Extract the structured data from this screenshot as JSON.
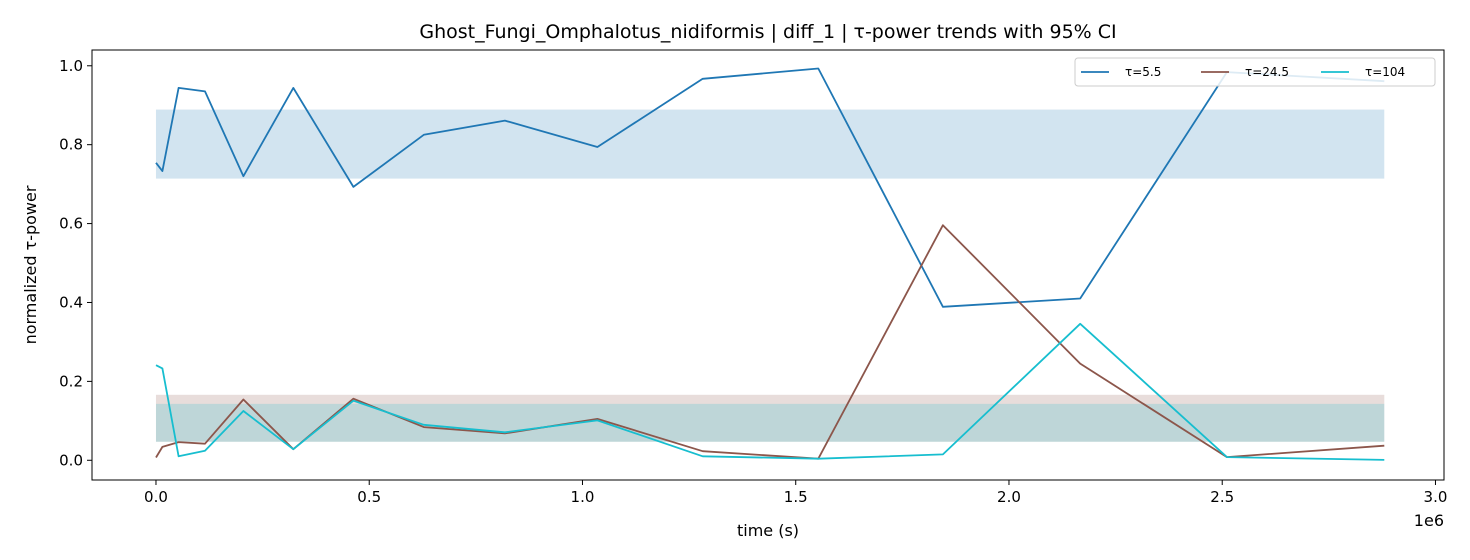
{
  "chart_data": {
    "type": "line",
    "title": "Ghost_Fungi_Omphalotus_nidiformis | diff_1 | τ-power trends with 95% CI",
    "xlabel": "time (s)",
    "ylabel": "normalized τ-power",
    "x_offset_label": "1e6",
    "xlim": [
      -150000,
      3020000
    ],
    "ylim": [
      -0.05,
      1.04
    ],
    "x_ticks": [
      0,
      500000,
      1000000,
      1500000,
      2000000,
      2500000,
      3000000
    ],
    "x_tick_labels": [
      "0.0",
      "0.5",
      "1.0",
      "1.5",
      "2.0",
      "2.5",
      "3.0"
    ],
    "y_ticks": [
      0.0,
      0.2,
      0.4,
      0.6,
      0.8,
      1.0
    ],
    "y_tick_labels": [
      "0.0",
      "0.2",
      "0.4",
      "0.6",
      "0.8",
      "1.0"
    ],
    "grid": false,
    "legend_position": "top-right",
    "x": [
      0,
      15000,
      53000,
      115000,
      205000,
      322000,
      463000,
      628000,
      818000,
      1035000,
      1282000,
      1553000,
      1845000,
      2167000,
      2511000,
      2880000
    ],
    "series": [
      {
        "name": "τ=5.5",
        "color": "#1f77b4",
        "values": [
          0.754,
          0.733,
          0.944,
          0.935,
          0.72,
          0.944,
          0.693,
          0.825,
          0.861,
          0.794,
          0.967,
          0.993,
          0.389,
          0.41,
          0.984,
          0.961
        ],
        "ci": [
          0.714,
          0.889
        ]
      },
      {
        "name": "τ=24.5",
        "color": "#8c564b",
        "values": [
          0.007,
          0.034,
          0.046,
          0.042,
          0.154,
          0.028,
          0.156,
          0.084,
          0.068,
          0.105,
          0.023,
          0.004,
          0.596,
          0.245,
          0.008,
          0.037
        ],
        "ci": [
          0.047,
          0.166
        ]
      },
      {
        "name": "τ=104",
        "color": "#17becf",
        "values": [
          0.241,
          0.233,
          0.01,
          0.024,
          0.125,
          0.028,
          0.151,
          0.09,
          0.071,
          0.101,
          0.01,
          0.004,
          0.015,
          0.346,
          0.008,
          0.001
        ],
        "ci": [
          0.047,
          0.143
        ]
      }
    ]
  }
}
